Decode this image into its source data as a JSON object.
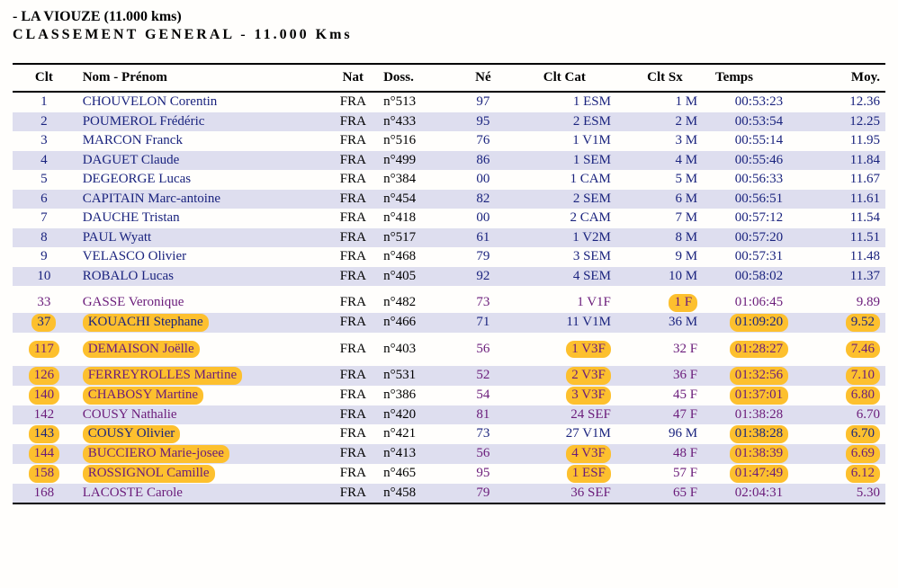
{
  "title_line1": " - LA  VIOUZE (11.000 kms)",
  "title_line2": "CLASSEMENT  GENERAL - 11.000 Kms",
  "columns": {
    "clt": "Clt",
    "name": "Nom - Prénom",
    "nat": "Nat",
    "doss": "Doss.",
    "ne": "Né",
    "cat": "Clt Cat",
    "sx": "Clt Sx",
    "temps": "Temps",
    "moy": "Moy."
  },
  "rows": [
    {
      "clt": "1",
      "name": "CHOUVELON Corentin",
      "nat": "FRA",
      "doss": "n°513",
      "ne": "97",
      "cat": "1 ESM",
      "sx": "1 M",
      "temps": "00:53:23",
      "moy": "12.36",
      "color": "blue",
      "stripe": false
    },
    {
      "clt": "2",
      "name": "POUMEROL Frédéric",
      "nat": "FRA",
      "doss": "n°433",
      "ne": "95",
      "cat": "2 ESM",
      "sx": "2 M",
      "temps": "00:53:54",
      "moy": "12.25",
      "color": "blue",
      "stripe": true
    },
    {
      "clt": "3",
      "name": "MARCON Franck",
      "nat": "FRA",
      "doss": "n°516",
      "ne": "76",
      "cat": "1 V1M",
      "sx": "3 M",
      "temps": "00:55:14",
      "moy": "11.95",
      "color": "blue",
      "stripe": false
    },
    {
      "clt": "4",
      "name": "DAGUET Claude",
      "nat": "FRA",
      "doss": "n°499",
      "ne": "86",
      "cat": "1 SEM",
      "sx": "4 M",
      "temps": "00:55:46",
      "moy": "11.84",
      "color": "blue",
      "stripe": true
    },
    {
      "clt": "5",
      "name": "DEGEORGE Lucas",
      "nat": "FRA",
      "doss": "n°384",
      "ne": "00",
      "cat": "1 CAM",
      "sx": "5 M",
      "temps": "00:56:33",
      "moy": "11.67",
      "color": "blue",
      "stripe": false
    },
    {
      "clt": "6",
      "name": "CAPITAIN Marc-antoine",
      "nat": "FRA",
      "doss": "n°454",
      "ne": "82",
      "cat": "2 SEM",
      "sx": "6 M",
      "temps": "00:56:51",
      "moy": "11.61",
      "color": "blue",
      "stripe": true
    },
    {
      "clt": "7",
      "name": "DAUCHE Tristan",
      "nat": "FRA",
      "doss": "n°418",
      "ne": "00",
      "cat": "2 CAM",
      "sx": "7 M",
      "temps": "00:57:12",
      "moy": "11.54",
      "color": "blue",
      "stripe": false
    },
    {
      "clt": "8",
      "name": "PAUL Wyatt",
      "nat": "FRA",
      "doss": "n°517",
      "ne": "61",
      "cat": "1 V2M",
      "sx": "8 M",
      "temps": "00:57:20",
      "moy": "11.51",
      "color": "blue",
      "stripe": true
    },
    {
      "clt": "9",
      "name": "VELASCO Olivier",
      "nat": "FRA",
      "doss": "n°468",
      "ne": "79",
      "cat": "3 SEM",
      "sx": "9 M",
      "temps": "00:57:31",
      "moy": "11.48",
      "color": "blue",
      "stripe": false
    },
    {
      "clt": "10",
      "name": "ROBALO Lucas",
      "nat": "FRA",
      "doss": "n°405",
      "ne": "92",
      "cat": "4 SEM",
      "sx": "10 M",
      "temps": "00:58:02",
      "moy": "11.37",
      "color": "blue",
      "stripe": true
    },
    {
      "spacer": true
    },
    {
      "clt": "33",
      "name": "GASSE Veronique",
      "nat": "FRA",
      "doss": "n°482",
      "ne": "73",
      "cat": "1 V1F",
      "sx": "1 F",
      "temps": "01:06:45",
      "moy": "9.89",
      "color": "purple",
      "stripe": false,
      "hl": {
        "sx": true
      }
    },
    {
      "clt": "37",
      "name": "KOUACHI Stephane",
      "nat": "FRA",
      "doss": "n°466",
      "ne": "71",
      "cat": "11 V1M",
      "sx": "36 M",
      "temps": "01:09:20",
      "moy": "9.52",
      "color": "blue",
      "stripe": true,
      "hl": {
        "clt": true,
        "name": true,
        "temps": true,
        "moy": true
      }
    },
    {
      "spacer": true
    },
    {
      "clt": "117",
      "name": "DEMAISON Joëlle",
      "nat": "FRA",
      "doss": "n°403",
      "ne": "56",
      "cat": "1 V3F",
      "sx": "32 F",
      "temps": "01:28:27",
      "moy": "7.46",
      "color": "purple",
      "stripe": false,
      "hl": {
        "clt": true,
        "name": true,
        "cat": true,
        "temps": true,
        "moy": true
      }
    },
    {
      "spacer": true
    },
    {
      "clt": "126",
      "name": "FERREYROLLES Martine",
      "nat": "FRA",
      "doss": "n°531",
      "ne": "52",
      "cat": "2 V3F",
      "sx": "36 F",
      "temps": "01:32:56",
      "moy": "7.10",
      "color": "purple",
      "stripe": true,
      "hl": {
        "clt": true,
        "name": true,
        "cat": true,
        "temps": true,
        "moy": true
      }
    },
    {
      "clt": "140",
      "name": "CHABOSY Martine",
      "nat": "FRA",
      "doss": "n°386",
      "ne": "54",
      "cat": "3 V3F",
      "sx": "45 F",
      "temps": "01:37:01",
      "moy": "6.80",
      "color": "purple",
      "stripe": false,
      "hl": {
        "clt": true,
        "name": true,
        "cat": true,
        "temps": true,
        "moy": true
      }
    },
    {
      "clt": "142",
      "name": "COUSY Nathalie",
      "nat": "FRA",
      "doss": "n°420",
      "ne": "81",
      "cat": "24 SEF",
      "sx": "47 F",
      "temps": "01:38:28",
      "moy": "6.70",
      "color": "purple",
      "stripe": true
    },
    {
      "clt": "143",
      "name": "COUSY Olivier",
      "nat": "FRA",
      "doss": "n°421",
      "ne": "73",
      "cat": "27 V1M",
      "sx": "96 M",
      "temps": "01:38:28",
      "moy": "6.70",
      "color": "blue",
      "stripe": false,
      "hl": {
        "clt": true,
        "name": true,
        "temps": true,
        "moy": true
      }
    },
    {
      "clt": "144",
      "name": "BUCCIERO Marie-josee",
      "nat": "FRA",
      "doss": "n°413",
      "ne": "56",
      "cat": "4 V3F",
      "sx": "48 F",
      "temps": "01:38:39",
      "moy": "6.69",
      "color": "purple",
      "stripe": true,
      "hl": {
        "clt": true,
        "name": true,
        "cat": true,
        "temps": true,
        "moy": true
      }
    },
    {
      "clt": "158",
      "name": "ROSSIGNOL Camille",
      "nat": "FRA",
      "doss": "n°465",
      "ne": "95",
      "cat": "1 ESF",
      "sx": "57 F",
      "temps": "01:47:49",
      "moy": "6.12",
      "color": "purple",
      "stripe": false,
      "hl": {
        "clt": true,
        "name": true,
        "cat": true,
        "temps": true,
        "moy": true
      }
    },
    {
      "clt": "168",
      "name": "LACOSTE Carole",
      "nat": "FRA",
      "doss": "n°458",
      "ne": "79",
      "cat": "36 SEF",
      "sx": "65 F",
      "temps": "02:04:31",
      "moy": "5.30",
      "color": "purple",
      "stripe": true
    }
  ]
}
